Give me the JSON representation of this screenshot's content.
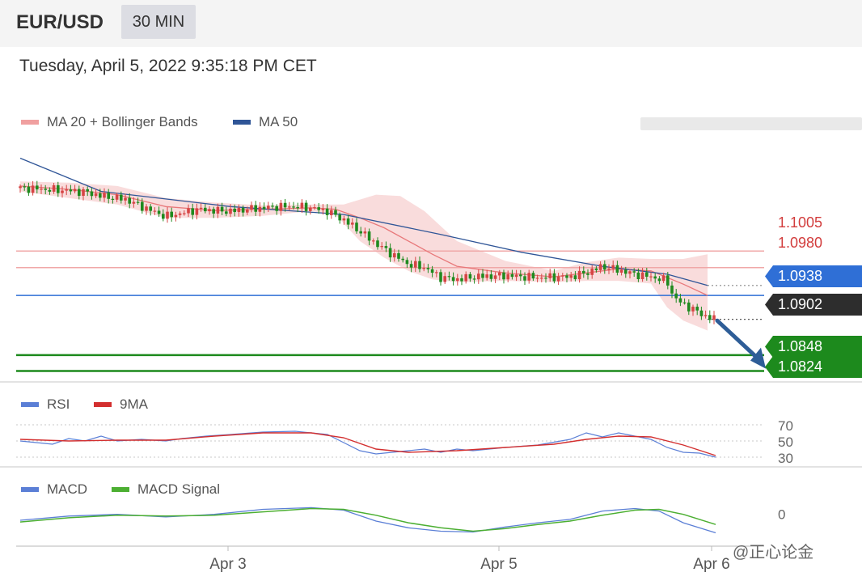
{
  "header": {
    "symbol": "EUR/USD",
    "timeframe": "30 MIN"
  },
  "datetime": "Tuesday, April 5, 2022 9:35:18 PM CET",
  "watermark": "@正心论金",
  "colors": {
    "ma20": "#e8787a",
    "bollinger_fill": "#f7d0d0",
    "ma50": "#2f5597",
    "resistance": "#f0a8a8",
    "pivot": "#2f6fd6",
    "support": "#1d8a1d",
    "last_price": "#2d2d2d",
    "arrow": "#2e5d97",
    "rsi": "#5b7fd6",
    "rsi_ma": "#d32f2f",
    "macd": "#5b7fd6",
    "macd_signal": "#4caf32",
    "candle_up": "#d64545",
    "candle_down": "#1f8a1f"
  },
  "chart_data": [
    {
      "type": "candlestick",
      "legend": [
        {
          "label": "MA 20 + Bollinger Bands",
          "color": "#e8787a"
        },
        {
          "label": "MA 50",
          "color": "#2f5597"
        }
      ],
      "x_ticks": [
        "Apr 3",
        "Apr 5",
        "Apr 6"
      ],
      "ylim": [
        1.081,
        1.117
      ],
      "levels": [
        {
          "value": 1.1005,
          "label": "1.1005",
          "kind": "resistance"
        },
        {
          "value": 1.098,
          "label": "1.0980",
          "kind": "resistance"
        },
        {
          "value": 1.0938,
          "label": "1.0938",
          "kind": "pivot"
        },
        {
          "value": 1.0902,
          "label": "1.0902",
          "kind": "last"
        },
        {
          "value": 1.0848,
          "label": "1.0848",
          "kind": "support"
        },
        {
          "value": 1.0824,
          "label": "1.0824",
          "kind": "support"
        }
      ],
      "ma50": [
        [
          0,
          1.1145
        ],
        [
          100,
          1.1095
        ],
        [
          260,
          1.1072
        ],
        [
          400,
          1.106
        ],
        [
          520,
          1.103
        ],
        [
          620,
          1.1003
        ],
        [
          720,
          1.0982
        ],
        [
          800,
          1.097
        ],
        [
          850,
          1.0953
        ]
      ],
      "bollinger_upper": [
        [
          0,
          1.111
        ],
        [
          60,
          1.1108
        ],
        [
          120,
          1.1103
        ],
        [
          180,
          1.1085
        ],
        [
          240,
          1.1078
        ],
        [
          300,
          1.1074
        ],
        [
          360,
          1.1075
        ],
        [
          400,
          1.1075
        ],
        [
          440,
          1.109
        ],
        [
          470,
          1.1088
        ],
        [
          500,
          1.1065
        ],
        [
          540,
          1.102
        ],
        [
          600,
          1.099
        ],
        [
          660,
          1.0975
        ],
        [
          700,
          1.0988
        ],
        [
          740,
          1.0995
        ],
        [
          780,
          1.0993
        ],
        [
          820,
          1.0993
        ],
        [
          850,
          1.1
        ]
      ],
      "bollinger_lower": [
        [
          0,
          1.1095
        ],
        [
          60,
          1.1085
        ],
        [
          120,
          1.1075
        ],
        [
          180,
          1.1055
        ],
        [
          240,
          1.1055
        ],
        [
          300,
          1.1058
        ],
        [
          360,
          1.1065
        ],
        [
          390,
          1.106
        ],
        [
          420,
          1.102
        ],
        [
          450,
          1.0995
        ],
        [
          480,
          1.0975
        ],
        [
          510,
          1.0962
        ],
        [
          540,
          1.0958
        ],
        [
          600,
          1.096
        ],
        [
          660,
          1.0958
        ],
        [
          700,
          1.096
        ],
        [
          740,
          1.096
        ],
        [
          780,
          1.0956
        ],
        [
          800,
          1.092
        ],
        [
          820,
          1.09
        ],
        [
          850,
          1.0885
        ]
      ],
      "ma20": [
        [
          0,
          1.1103
        ],
        [
          60,
          1.1098
        ],
        [
          120,
          1.109
        ],
        [
          180,
          1.1072
        ],
        [
          240,
          1.1066
        ],
        [
          300,
          1.1068
        ],
        [
          360,
          1.107
        ],
        [
          390,
          1.1068
        ],
        [
          420,
          1.1055
        ],
        [
          450,
          1.104
        ],
        [
          480,
          1.102
        ],
        [
          510,
          1.1
        ],
        [
          540,
          1.0982
        ],
        [
          600,
          1.0972
        ],
        [
          660,
          1.0966
        ],
        [
          700,
          1.0972
        ],
        [
          740,
          1.0978
        ],
        [
          780,
          1.0975
        ],
        [
          820,
          1.0955
        ],
        [
          850,
          1.0938
        ]
      ],
      "close_path": [
        [
          0,
          1.11
        ],
        [
          30,
          1.1098
        ],
        [
          60,
          1.1096
        ],
        [
          80,
          1.1094
        ],
        [
          100,
          1.1088
        ],
        [
          130,
          1.1083
        ],
        [
          160,
          1.1067
        ],
        [
          180,
          1.1057
        ],
        [
          200,
          1.1062
        ],
        [
          220,
          1.1068
        ],
        [
          240,
          1.1066
        ],
        [
          260,
          1.1065
        ],
        [
          280,
          1.1068
        ],
        [
          300,
          1.107
        ],
        [
          320,
          1.1072
        ],
        [
          340,
          1.1072
        ],
        [
          360,
          1.107
        ],
        [
          380,
          1.1065
        ],
        [
          400,
          1.1052
        ],
        [
          420,
          1.1035
        ],
        [
          440,
          1.1016
        ],
        [
          460,
          1.1
        ],
        [
          480,
          1.0985
        ],
        [
          500,
          1.098
        ],
        [
          520,
          1.0965
        ],
        [
          540,
          1.0962
        ],
        [
          560,
          1.0966
        ],
        [
          600,
          1.0968
        ],
        [
          640,
          1.0965
        ],
        [
          680,
          1.0966
        ],
        [
          700,
          1.0972
        ],
        [
          720,
          1.0982
        ],
        [
          740,
          1.0976
        ],
        [
          760,
          1.097
        ],
        [
          780,
          1.0966
        ],
        [
          800,
          1.096
        ],
        [
          808,
          1.0935
        ],
        [
          820,
          1.0925
        ],
        [
          835,
          1.0915
        ],
        [
          850,
          1.0905
        ],
        [
          860,
          1.0902
        ]
      ],
      "projection_arrow": {
        "from": [
          862,
          1.09
        ],
        "to": [
          920,
          1.083
        ]
      }
    },
    {
      "type": "line",
      "legend": [
        {
          "label": "RSI",
          "color": "#5b7fd6"
        },
        {
          "label": "9MA",
          "color": "#d32f2f"
        }
      ],
      "y_ticks": [
        "70",
        "50",
        "30"
      ],
      "ylim": [
        20,
        80
      ],
      "series": [
        {
          "name": "RSI",
          "points": [
            [
              0,
              50
            ],
            [
              40,
              46
            ],
            [
              60,
              53
            ],
            [
              80,
              50
            ],
            [
              100,
              56
            ],
            [
              120,
              50
            ],
            [
              150,
              52
            ],
            [
              180,
              50
            ],
            [
              200,
              53
            ],
            [
              230,
              56
            ],
            [
              260,
              58
            ],
            [
              300,
              61
            ],
            [
              340,
              62
            ],
            [
              360,
              60
            ],
            [
              380,
              58
            ],
            [
              400,
              48
            ],
            [
              420,
              38
            ],
            [
              440,
              34
            ],
            [
              460,
              36
            ],
            [
              480,
              38
            ],
            [
              500,
              40
            ],
            [
              520,
              36
            ],
            [
              540,
              40
            ],
            [
              560,
              38
            ],
            [
              580,
              40
            ],
            [
              600,
              42
            ],
            [
              640,
              45
            ],
            [
              680,
              52
            ],
            [
              700,
              60
            ],
            [
              720,
              55
            ],
            [
              740,
              60
            ],
            [
              760,
              56
            ],
            [
              780,
              52
            ],
            [
              800,
              42
            ],
            [
              820,
              36
            ],
            [
              840,
              35
            ],
            [
              860,
              30
            ]
          ]
        },
        {
          "name": "9MA",
          "points": [
            [
              0,
              52
            ],
            [
              60,
              50
            ],
            [
              120,
              51
            ],
            [
              180,
              51
            ],
            [
              240,
              56
            ],
            [
              300,
              60
            ],
            [
              360,
              60
            ],
            [
              400,
              54
            ],
            [
              440,
              40
            ],
            [
              480,
              36
            ],
            [
              540,
              38
            ],
            [
              600,
              42
            ],
            [
              660,
              46
            ],
            [
              700,
              52
            ],
            [
              740,
              56
            ],
            [
              780,
              55
            ],
            [
              820,
              45
            ],
            [
              860,
              32
            ]
          ]
        }
      ]
    },
    {
      "type": "line",
      "legend": [
        {
          "label": "MACD",
          "color": "#5b7fd6"
        },
        {
          "label": "MACD Signal",
          "color": "#4caf32"
        }
      ],
      "y_ticks": [
        "0"
      ],
      "ylim": [
        -0.0035,
        0.002
      ],
      "series": [
        {
          "name": "MACD",
          "points": [
            [
              0,
              -0.0007
            ],
            [
              60,
              -0.0002
            ],
            [
              120,
              0.0
            ],
            [
              180,
              -0.0003
            ],
            [
              240,
              0.0
            ],
            [
              300,
              0.0006
            ],
            [
              360,
              0.0008
            ],
            [
              400,
              0.0005
            ],
            [
              440,
              -0.0008
            ],
            [
              480,
              -0.0016
            ],
            [
              520,
              -0.002
            ],
            [
              560,
              -0.0021
            ],
            [
              600,
              -0.0015
            ],
            [
              640,
              -0.001
            ],
            [
              680,
              -0.0006
            ],
            [
              720,
              0.0004
            ],
            [
              760,
              0.0007
            ],
            [
              790,
              0.0004
            ],
            [
              820,
              -0.001
            ],
            [
              860,
              -0.0022
            ]
          ]
        },
        {
          "name": "MACD Signal",
          "points": [
            [
              0,
              -0.0009
            ],
            [
              60,
              -0.0004
            ],
            [
              120,
              -0.0001
            ],
            [
              180,
              -0.0002
            ],
            [
              240,
              -0.0001
            ],
            [
              300,
              0.0003
            ],
            [
              360,
              0.0007
            ],
            [
              400,
              0.0006
            ],
            [
              440,
              -0.0001
            ],
            [
              480,
              -0.001
            ],
            [
              520,
              -0.0016
            ],
            [
              560,
              -0.002
            ],
            [
              600,
              -0.0017
            ],
            [
              640,
              -0.0012
            ],
            [
              680,
              -0.0008
            ],
            [
              720,
              -0.0001
            ],
            [
              760,
              0.0005
            ],
            [
              790,
              0.0006
            ],
            [
              820,
              0.0
            ],
            [
              860,
              -0.0012
            ]
          ]
        }
      ]
    }
  ]
}
